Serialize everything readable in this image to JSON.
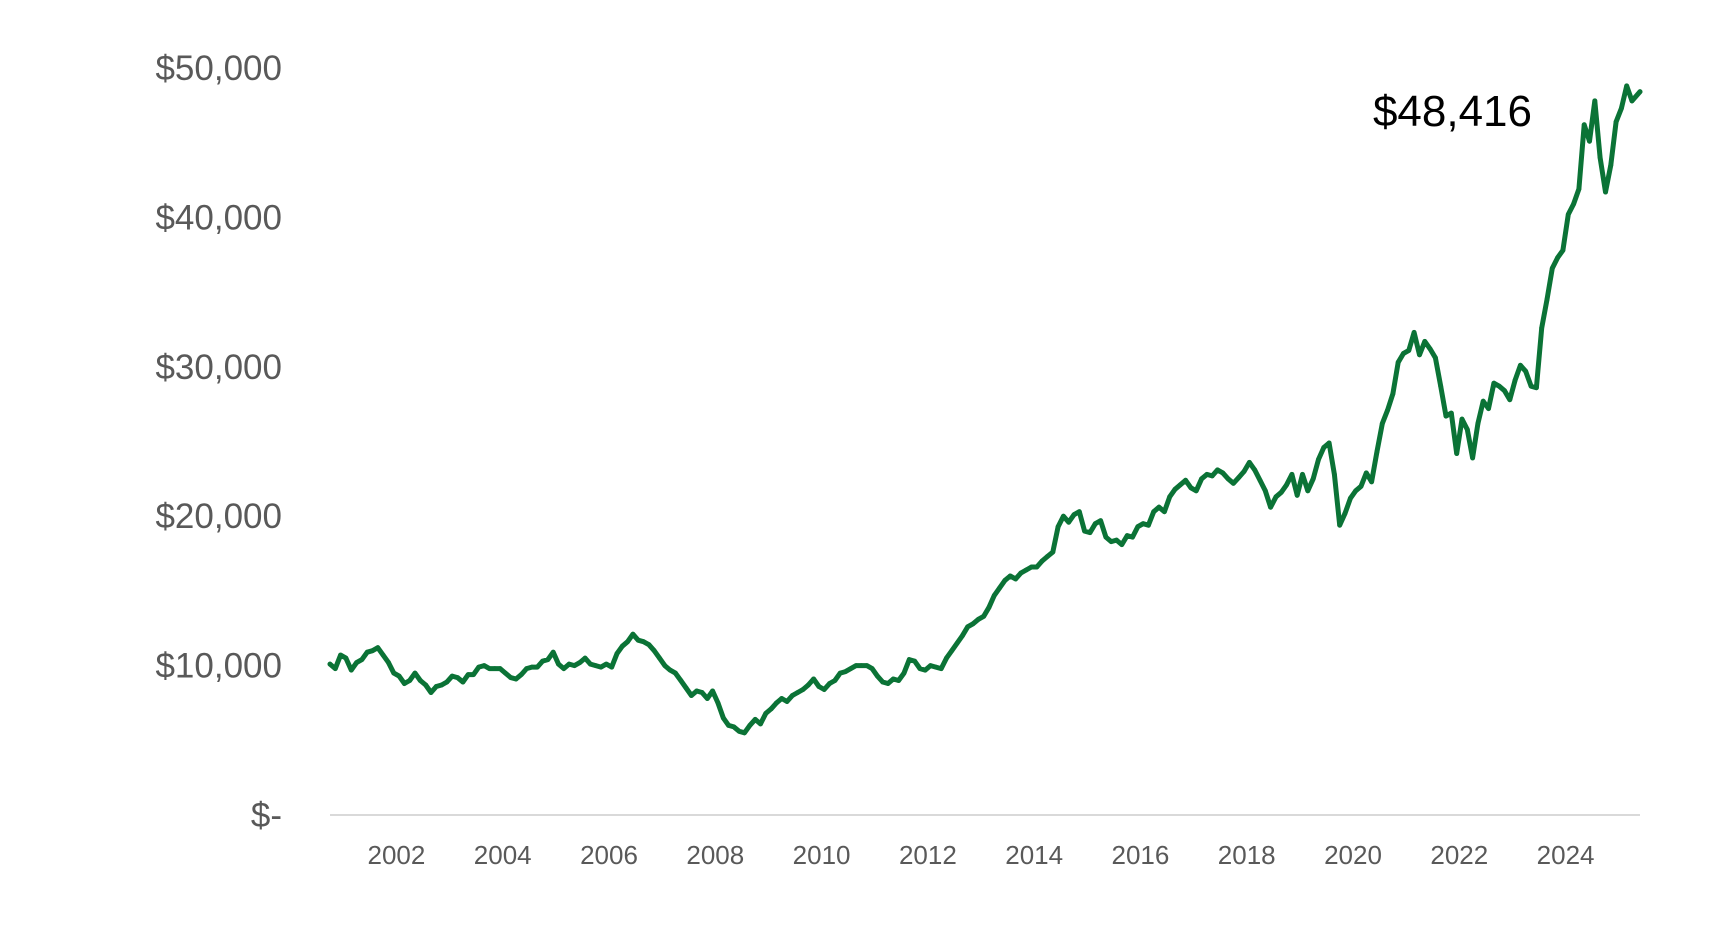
{
  "colors": {
    "line": "#0b7336",
    "axis": "#d9d9d9",
    "tick_text": "#595959",
    "annotation_text": "#000000",
    "background": "#ffffff"
  },
  "chart_data": {
    "type": "line",
    "title": "",
    "xlabel": "",
    "ylabel": "",
    "grid": false,
    "legend": "none",
    "ylim": [
      0,
      50000
    ],
    "xlim": [
      2000.75,
      2025.4
    ],
    "y_ticks": [
      {
        "value": 0,
        "label": "$-"
      },
      {
        "value": 10000,
        "label": "$10,000"
      },
      {
        "value": 20000,
        "label": "$20,000"
      },
      {
        "value": 30000,
        "label": "$30,000"
      },
      {
        "value": 40000,
        "label": "$40,000"
      },
      {
        "value": 50000,
        "label": "$50,000"
      }
    ],
    "x_ticks": [
      {
        "value": 2002,
        "label": "2002"
      },
      {
        "value": 2004,
        "label": "2004"
      },
      {
        "value": 2006,
        "label": "2006"
      },
      {
        "value": 2008,
        "label": "2008"
      },
      {
        "value": 2010,
        "label": "2010"
      },
      {
        "value": 2012,
        "label": "2012"
      },
      {
        "value": 2014,
        "label": "2014"
      },
      {
        "value": 2016,
        "label": "2016"
      },
      {
        "value": 2018,
        "label": "2018"
      },
      {
        "value": 2020,
        "label": "2020"
      },
      {
        "value": 2022,
        "label": "2022"
      },
      {
        "value": 2024,
        "label": "2024"
      }
    ],
    "annotation": {
      "text": "$48,416",
      "x": 2025.4,
      "y": 48416
    },
    "series": [
      {
        "x": [
          2000.75,
          2000.85,
          2000.95,
          2001.05,
          2001.15,
          2001.25,
          2001.35,
          2001.45,
          2001.55,
          2001.65,
          2001.75,
          2001.85,
          2001.95,
          2002.05,
          2002.15,
          2002.25,
          2002.35,
          2002.45,
          2002.55,
          2002.65,
          2002.75,
          2002.85,
          2002.95,
          2003.05,
          2003.15,
          2003.25,
          2003.35,
          2003.45,
          2003.55,
          2003.65,
          2003.75,
          2003.85,
          2003.95,
          2004.05,
          2004.15,
          2004.25,
          2004.35,
          2004.45,
          2004.55,
          2004.65,
          2004.75,
          2004.85,
          2004.95,
          2005.05,
          2005.15,
          2005.25,
          2005.35,
          2005.45,
          2005.55,
          2005.65,
          2005.75,
          2005.85,
          2005.95,
          2006.05,
          2006.15,
          2006.25,
          2006.35,
          2006.45,
          2006.55,
          2006.65,
          2006.75,
          2006.85,
          2006.95,
          2007.05,
          2007.15,
          2007.25,
          2007.35,
          2007.45,
          2007.55,
          2007.65,
          2007.75,
          2007.85,
          2007.95,
          2008.05,
          2008.15,
          2008.25,
          2008.35,
          2008.45,
          2008.55,
          2008.65,
          2008.75,
          2008.85,
          2008.95,
          2009.05,
          2009.15,
          2009.25,
          2009.35,
          2009.45,
          2009.55,
          2009.65,
          2009.75,
          2009.85,
          2009.95,
          2010.05,
          2010.15,
          2010.25,
          2010.35,
          2010.45,
          2010.55,
          2010.65,
          2010.75,
          2010.85,
          2010.95,
          2011.05,
          2011.15,
          2011.25,
          2011.35,
          2011.45,
          2011.55,
          2011.65,
          2011.75,
          2011.85,
          2011.95,
          2012.05,
          2012.15,
          2012.25,
          2012.35,
          2012.45,
          2012.55,
          2012.65,
          2012.75,
          2012.85,
          2012.95,
          2013.05,
          2013.15,
          2013.25,
          2013.35,
          2013.45,
          2013.55,
          2013.65,
          2013.75,
          2013.85,
          2013.95,
          2014.05,
          2014.15,
          2014.25,
          2014.35,
          2014.45,
          2014.55,
          2014.65,
          2014.75,
          2014.85,
          2014.95,
          2015.05,
          2015.15,
          2015.25,
          2015.35,
          2015.45,
          2015.55,
          2015.65,
          2015.75,
          2015.85,
          2015.95,
          2016.05,
          2016.15,
          2016.25,
          2016.35,
          2016.45,
          2016.55,
          2016.65,
          2016.75,
          2016.85,
          2016.95,
          2017.05,
          2017.15,
          2017.25,
          2017.35,
          2017.45,
          2017.55,
          2017.65,
          2017.75,
          2017.85,
          2017.95,
          2018.05,
          2018.15,
          2018.25,
          2018.35,
          2018.45,
          2018.55,
          2018.65,
          2018.75,
          2018.85,
          2018.95,
          2019.05,
          2019.15,
          2019.25,
          2019.35,
          2019.45,
          2019.55,
          2019.65,
          2019.75,
          2019.85,
          2019.95,
          2020.05,
          2020.15,
          2020.25,
          2020.35,
          2020.45,
          2020.55,
          2020.65,
          2020.75,
          2020.85,
          2020.95,
          2021.05,
          2021.15,
          2021.25,
          2021.35,
          2021.45,
          2021.55,
          2021.65,
          2021.75,
          2021.85,
          2021.95,
          2022.05,
          2022.15,
          2022.25,
          2022.35,
          2022.45,
          2022.55,
          2022.65,
          2022.75,
          2022.85,
          2022.95,
          2023.05,
          2023.15,
          2023.25,
          2023.35,
          2023.45,
          2023.55,
          2023.65,
          2023.75,
          2023.85,
          2023.95,
          2024.05,
          2024.15,
          2024.25,
          2024.35,
          2024.45,
          2024.55,
          2024.65,
          2024.75,
          2024.85,
          2024.95,
          2025.05,
          2025.15,
          2025.25,
          2025.4
        ],
        "values": [
          10100,
          9800,
          10700,
          10500,
          9700,
          10200,
          10400,
          10900,
          11000,
          11200,
          10700,
          10200,
          9500,
          9300,
          8800,
          9000,
          9500,
          9000,
          8700,
          8200,
          8600,
          8700,
          8900,
          9300,
          9200,
          8900,
          9400,
          9400,
          9900,
          10000,
          9800,
          9800,
          9800,
          9500,
          9200,
          9100,
          9400,
          9800,
          9900,
          9900,
          10300,
          10400,
          10900,
          10100,
          9800,
          10100,
          10000,
          10200,
          10500,
          10100,
          10000,
          9900,
          10100,
          9900,
          10800,
          11300,
          11600,
          12100,
          11700,
          11600,
          11400,
          11000,
          10500,
          10000,
          9700,
          9500,
          9000,
          8500,
          8000,
          8300,
          8200,
          7800,
          8300,
          7500,
          6500,
          6000,
          5900,
          5600,
          5500,
          6000,
          6400,
          6100,
          6800,
          7100,
          7500,
          7800,
          7600,
          8000,
          8200,
          8400,
          8700,
          9100,
          8600,
          8400,
          8800,
          9000,
          9500,
          9600,
          9800,
          10000,
          10000,
          10000,
          9800,
          9300,
          8900,
          8800,
          9100,
          9000,
          9500,
          10400,
          10300,
          9800,
          9700,
          10000,
          9900,
          9800,
          10500,
          11000,
          11500,
          12000,
          12600,
          12800,
          13100,
          13300,
          13900,
          14700,
          15200,
          15700,
          16000,
          15800,
          16200,
          16400,
          16600,
          16600,
          17000,
          17300,
          17600,
          19300,
          20000,
          19600,
          20100,
          20300,
          19000,
          18900,
          19500,
          19700,
          18600,
          18300,
          18400,
          18100,
          18700,
          18600,
          19300,
          19500,
          19400,
          20300,
          20600,
          20300,
          21300,
          21800,
          22100,
          22400,
          21900,
          21700,
          22500,
          22800,
          22700,
          23100,
          22900,
          22500,
          22200,
          22600,
          23000,
          23600,
          23100,
          22400,
          21700,
          20600,
          21300,
          21600,
          22100,
          22800,
          21400,
          22800,
          21700,
          22500,
          23800,
          24600,
          24900,
          22800,
          19400,
          20200,
          21200,
          21700,
          22000,
          22900,
          22300,
          24300,
          26200,
          27100,
          28200,
          30300,
          30900,
          31100,
          32300,
          30800,
          31700,
          31200,
          30600,
          28700,
          26700,
          26900,
          24200,
          26500,
          25800,
          23900,
          26200,
          27700,
          27200,
          28900,
          28700,
          28400,
          27800,
          29100,
          30100,
          29700,
          28700,
          28600,
          32600,
          34500,
          36600,
          37300,
          37800,
          40200,
          40900,
          41900,
          46200,
          45100,
          47800,
          44000,
          41700,
          43500,
          46400,
          47300,
          48800,
          47800,
          48416
        ]
      }
    ]
  }
}
